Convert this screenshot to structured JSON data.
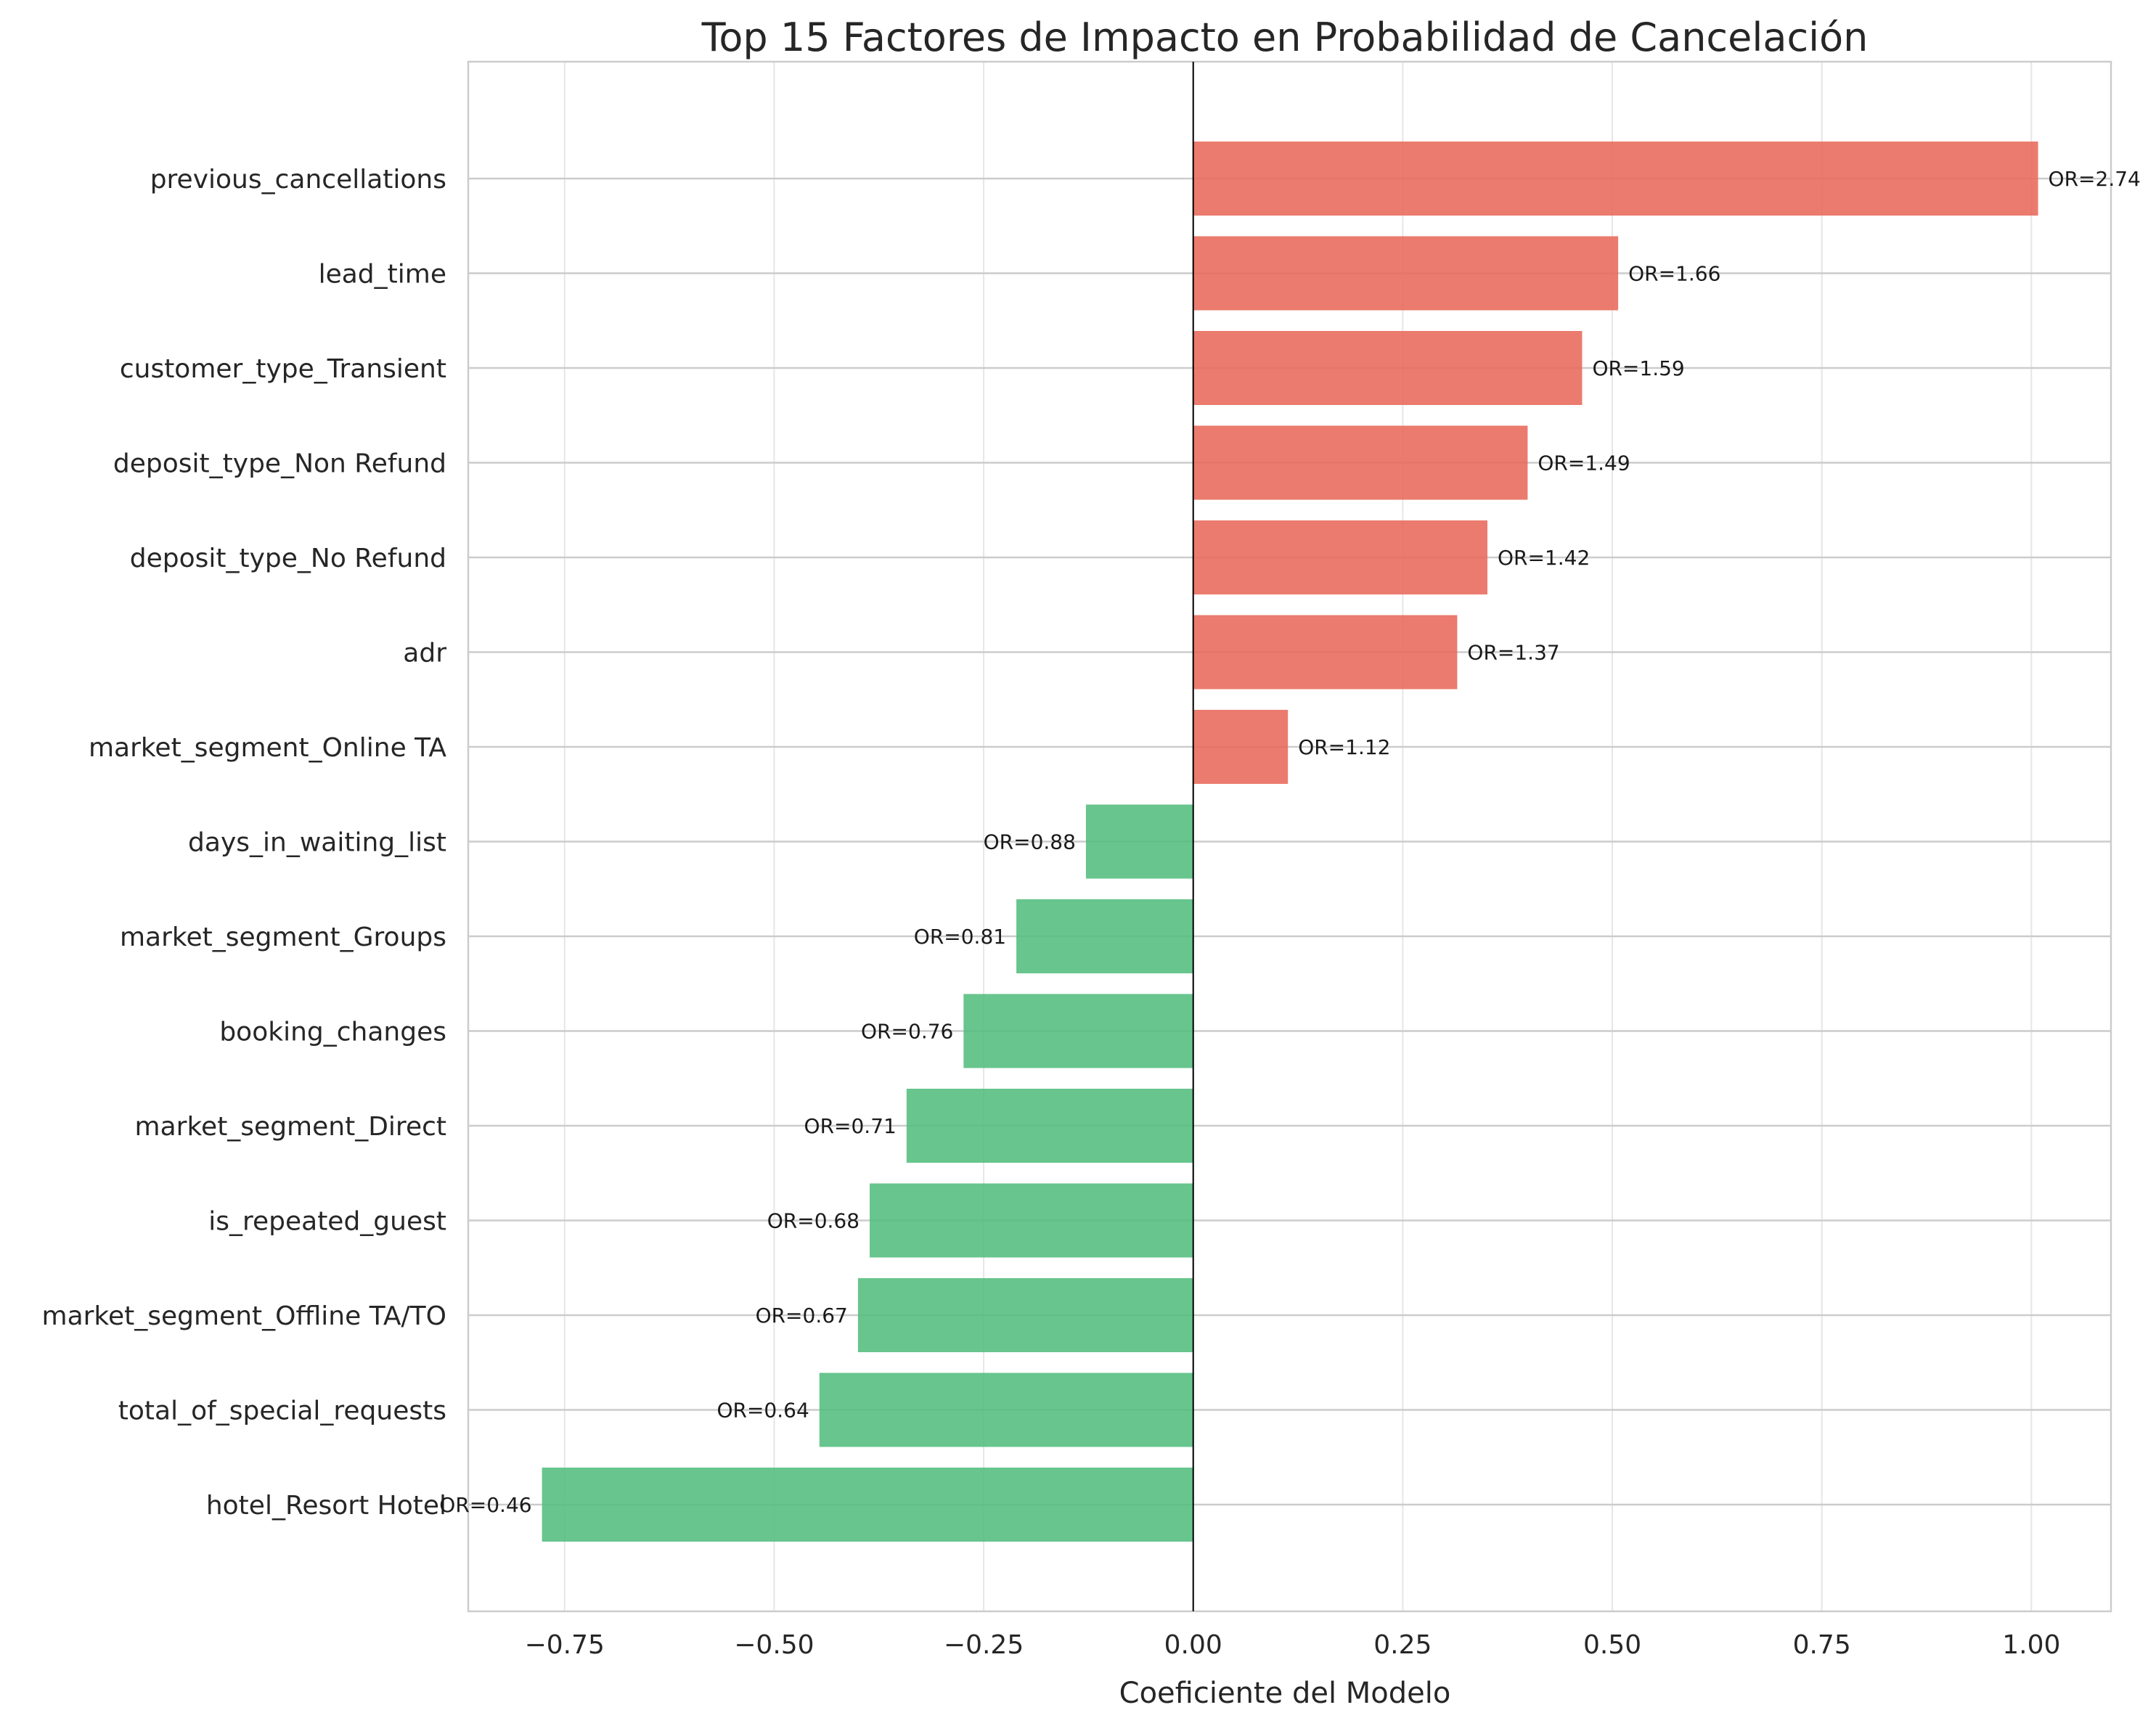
{
  "chart_data": {
    "type": "bar",
    "orientation": "horizontal",
    "title": "Top 15 Factores de Impacto en Probabilidad de Cancelación",
    "xlabel": "Coeficiente del Modelo",
    "ylabel": "",
    "xlim": [
      -0.865,
      1.095
    ],
    "xticks": [
      -0.75,
      -0.5,
      -0.25,
      0.0,
      0.25,
      0.5,
      0.75,
      1.0
    ],
    "xtick_labels": [
      "−0.75",
      "−0.50",
      "−0.25",
      "0.00",
      "0.25",
      "0.50",
      "0.75",
      "1.00"
    ],
    "grid": true,
    "zero_line": true,
    "colors": {
      "positive": "#e8695a",
      "negative": "#52bd7d",
      "grid": "#e6e6e6",
      "row_line": "#cccccc",
      "frame": "#cccccc",
      "zero_line": "#000000"
    },
    "categories": [
      "previous_cancellations",
      "lead_time",
      "customer_type_Transient",
      "deposit_type_Non Refund",
      "deposit_type_No Refund",
      "adr",
      "market_segment_Online TA",
      "days_in_waiting_list",
      "market_segment_Groups",
      "booking_changes",
      "market_segment_Direct",
      "is_repeated_guest",
      "market_segment_Offline TA/TO",
      "total_of_special_requests",
      "hotel_Resort Hotel"
    ],
    "values": [
      1.008,
      0.507,
      0.464,
      0.399,
      0.351,
      0.315,
      0.113,
      -0.128,
      -0.211,
      -0.274,
      -0.342,
      -0.386,
      -0.4,
      -0.446,
      -0.777
    ],
    "annotations": [
      "OR=2.74",
      "OR=1.66",
      "OR=1.59",
      "OR=1.49",
      "OR=1.42",
      "OR=1.37",
      "OR=1.12",
      "OR=0.88",
      "OR=0.81",
      "OR=0.76",
      "OR=0.71",
      "OR=0.68",
      "OR=0.67",
      "OR=0.64",
      "OR=0.46"
    ]
  }
}
